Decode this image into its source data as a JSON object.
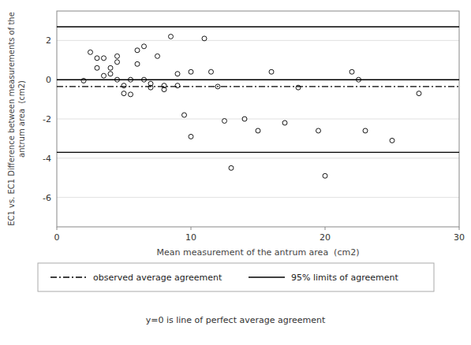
{
  "chart_data": {
    "type": "scatter",
    "xlabel": "Mean measurement of the antrum area  (cm2)",
    "ylabel": "EC1 vs. EC1 Difference between measurements of the\nantrum area  (cm2)",
    "series": [
      {
        "type": "scatter",
        "color": "#000000",
        "marker": "open-circle",
        "x": [
          2.0,
          2.5,
          3.0,
          3.0,
          3.5,
          3.5,
          4.0,
          4.0,
          4.5,
          4.5,
          4.5,
          5.0,
          5.0,
          5.5,
          5.5,
          6.0,
          6.0,
          6.5,
          6.5,
          7.0,
          7.0,
          7.5,
          8.0,
          8.0,
          8.5,
          9.0,
          9.0,
          9.5,
          10.0,
          10.0,
          11.0,
          11.5,
          12.0,
          12.5,
          13.0,
          14.0,
          15.0,
          16.0,
          17.0,
          18.0,
          19.5,
          20.0,
          22.0,
          22.5,
          23.0,
          25.0,
          27.0
        ],
        "values": [
          -0.05,
          1.4,
          1.1,
          0.6,
          1.1,
          0.2,
          0.6,
          0.3,
          1.2,
          0.9,
          0.0,
          -0.3,
          -0.7,
          -0.75,
          0.0,
          1.5,
          0.8,
          1.7,
          0.0,
          -0.2,
          -0.4,
          1.2,
          -0.3,
          -0.5,
          2.2,
          0.3,
          -0.3,
          -1.8,
          0.4,
          -2.9,
          2.1,
          0.4,
          -0.35,
          -2.1,
          -4.5,
          -2.0,
          -2.6,
          0.4,
          -2.2,
          -0.4,
          -2.6,
          -4.9,
          0.4,
          0.0,
          -2.6,
          -3.1,
          -0.7
        ]
      }
    ],
    "reference_lines": [
      {
        "value": 0.0,
        "color": "#000000",
        "line_style": "solid"
      },
      {
        "name": "observed average agreement",
        "value": -0.35,
        "color": "#000000",
        "line_style": "dashdot"
      },
      {
        "name": "95% limits of agreement",
        "values": [
          2.7,
          -3.7
        ],
        "color": "#000000",
        "line_style": "solid"
      }
    ],
    "annotations": [
      "y=0 is line of perfect average agreement"
    ],
    "xlim": [
      0,
      30
    ],
    "ylim": [
      -7.5,
      3.5
    ],
    "xticks": [
      0,
      10,
      20,
      30
    ],
    "yticks": [
      2,
      0,
      -2,
      -4,
      -6
    ],
    "grid": true
  }
}
